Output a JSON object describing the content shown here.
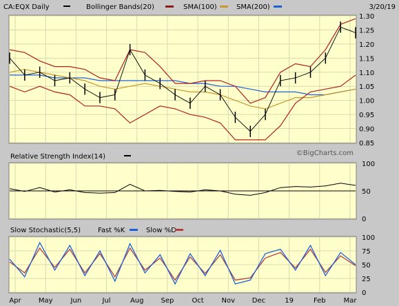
{
  "header": {
    "symbol": "CA:EQX Daily",
    "date": "3/20/19",
    "legend": [
      {
        "label": "Bollinger Bands(20)",
        "color": "#8b1a1a"
      },
      {
        "label": "SMA(100)",
        "color": "#c8962d"
      },
      {
        "label": "SMA(200)",
        "color": "#1f5fd6"
      }
    ]
  },
  "watermark": "©BigCharts.com",
  "colors": {
    "plot_bg": "#ffffcc",
    "panel_bg": "#c8c8c8",
    "grid": "#d8d8b0",
    "price": "#000000",
    "bollinger": "#b02020",
    "sma100": "#c8962d",
    "sma200": "#1f5fd6",
    "fast_k": "#1f5fd6",
    "slow_d": "#b04040"
  },
  "x_axis": {
    "months": [
      "Apr",
      "May",
      "Jun",
      "Jul",
      "Aug",
      "Sep",
      "Oct",
      "Nov",
      "Dec",
      "19",
      "Feb",
      "Mar"
    ]
  },
  "chart_data": [
    {
      "type": "line",
      "panel": "price",
      "title": "CA:EQX Daily",
      "ylim": [
        0.85,
        1.3
      ],
      "y_ticks": [
        "1.30",
        "1.25",
        "1.20",
        "1.15",
        "1.10",
        "1.05",
        "1.00",
        "0.95",
        "0.90",
        "0.85"
      ],
      "series_labels": [
        "Bollinger Bands(20)",
        "SMA(100)",
        "SMA(200)"
      ],
      "x": [
        "Apr",
        "Apr-m",
        "May",
        "May-m",
        "Jun",
        "Jun-m",
        "Jul",
        "Jul-m",
        "Aug",
        "Aug-m",
        "Sep",
        "Sep-m",
        "Oct",
        "Oct-m",
        "Nov",
        "Nov-m",
        "Dec",
        "Dec-m",
        "19",
        "19-m",
        "Feb",
        "Feb-m",
        "Mar",
        "Mar-m"
      ],
      "price_close": [
        1.15,
        1.09,
        1.1,
        1.07,
        1.08,
        1.04,
        1.01,
        1.02,
        1.18,
        1.09,
        1.06,
        1.02,
        0.99,
        1.05,
        1.02,
        0.94,
        0.89,
        0.95,
        1.07,
        1.08,
        1.1,
        1.15,
        1.26,
        1.24
      ],
      "bollinger_upper": [
        1.18,
        1.17,
        1.14,
        1.12,
        1.12,
        1.11,
        1.08,
        1.07,
        1.18,
        1.17,
        1.12,
        1.06,
        1.06,
        1.07,
        1.07,
        1.05,
        0.99,
        1.01,
        1.1,
        1.13,
        1.12,
        1.18,
        1.27,
        1.29
      ],
      "bollinger_lower": [
        1.05,
        1.03,
        1.05,
        1.03,
        1.02,
        0.98,
        0.98,
        0.97,
        0.92,
        0.95,
        0.98,
        0.97,
        0.95,
        0.94,
        0.92,
        0.86,
        0.86,
        0.86,
        0.91,
        0.99,
        1.03,
        1.04,
        1.05,
        1.09
      ],
      "sma100": [
        1.1,
        1.11,
        1.1,
        1.09,
        1.08,
        1.07,
        1.05,
        1.04,
        1.05,
        1.06,
        1.05,
        1.04,
        1.03,
        1.03,
        1.02,
        1.0,
        0.98,
        0.97,
        0.99,
        1.01,
        1.01,
        1.02,
        1.03,
        1.04
      ],
      "sma200": [
        1.09,
        1.09,
        1.09,
        1.08,
        1.08,
        1.08,
        1.07,
        1.07,
        1.07,
        1.07,
        1.07,
        1.07,
        1.06,
        1.06,
        1.05,
        1.05,
        1.04,
        1.03,
        1.03,
        1.03,
        1.02,
        1.02,
        1.03,
        1.04
      ]
    },
    {
      "type": "line",
      "panel": "rsi",
      "title": "Relative Strength Index(14)",
      "ylim": [
        0,
        100
      ],
      "y_ticks": [
        "100",
        "50",
        "0"
      ],
      "reference_line": 50,
      "values": [
        54,
        49,
        56,
        48,
        52,
        47,
        46,
        47,
        62,
        50,
        51,
        49,
        48,
        52,
        50,
        44,
        42,
        47,
        56,
        58,
        57,
        59,
        64,
        60
      ]
    },
    {
      "type": "line",
      "panel": "stochastic",
      "title": "Slow Stochastic(5,5)",
      "ylim": [
        0,
        100
      ],
      "y_ticks": [
        "100",
        "75",
        "50",
        "25",
        "0"
      ],
      "series": [
        {
          "name": "Fast %K",
          "values": [
            60,
            28,
            90,
            40,
            85,
            30,
            75,
            20,
            88,
            35,
            68,
            15,
            70,
            30,
            76,
            15,
            22,
            70,
            78,
            40,
            85,
            30,
            72,
            50
          ]
        },
        {
          "name": "Slow %D",
          "values": [
            55,
            35,
            80,
            45,
            78,
            35,
            70,
            28,
            80,
            40,
            62,
            22,
            64,
            34,
            68,
            22,
            26,
            62,
            72,
            44,
            78,
            36,
            66,
            48
          ]
        }
      ]
    }
  ]
}
